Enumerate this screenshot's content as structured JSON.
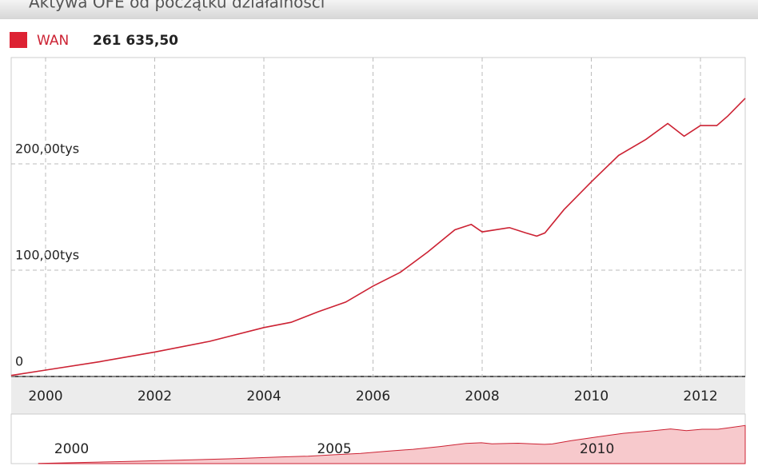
{
  "chart_data": {
    "type": "line",
    "title": "Aktywa OFE od początku działalności",
    "x": [
      1999.37,
      2000.0,
      2001.0,
      2002.0,
      2003.0,
      2004.0,
      2004.5,
      2005.0,
      2005.5,
      2006.0,
      2006.5,
      2007.0,
      2007.5,
      2007.8,
      2008.0,
      2008.5,
      2008.8,
      2009.0,
      2009.15,
      2009.5,
      2010.0,
      2010.5,
      2011.0,
      2011.4,
      2011.7,
      2012.0,
      2012.3,
      2012.5,
      2012.82
    ],
    "series": [
      {
        "name": "WAN",
        "color": "#cc2233",
        "values": [
          1000,
          6000,
          14000,
          23000,
          33000,
          46000,
          51000,
          61000,
          70000,
          85000,
          98000,
          117000,
          138000,
          143000,
          136000,
          140000,
          135000,
          132000,
          135000,
          157000,
          183000,
          208000,
          223000,
          238000,
          226000,
          236000,
          236000,
          245000,
          261635.5
        ],
        "current": {
          "value": 261635.5,
          "label": "261 635,50"
        }
      }
    ],
    "xlim": [
      1999.37,
      2012.82
    ],
    "xticks": [
      2000,
      2002,
      2004,
      2006,
      2008,
      2010,
      2012
    ],
    "ylim": [
      0,
      300000
    ],
    "yticks": [
      0,
      {
        "value": 100000,
        "label": "100,00tys"
      },
      {
        "value": 200000,
        "label": "200,00tys"
      }
    ],
    "grid": true,
    "navigator": {
      "xlim": [
        1998.85,
        2012.82
      ],
      "ylim": [
        0,
        340000
      ],
      "xticks": [
        2000,
        2005,
        2010
      ],
      "fill": "#f7c9cc"
    }
  }
}
